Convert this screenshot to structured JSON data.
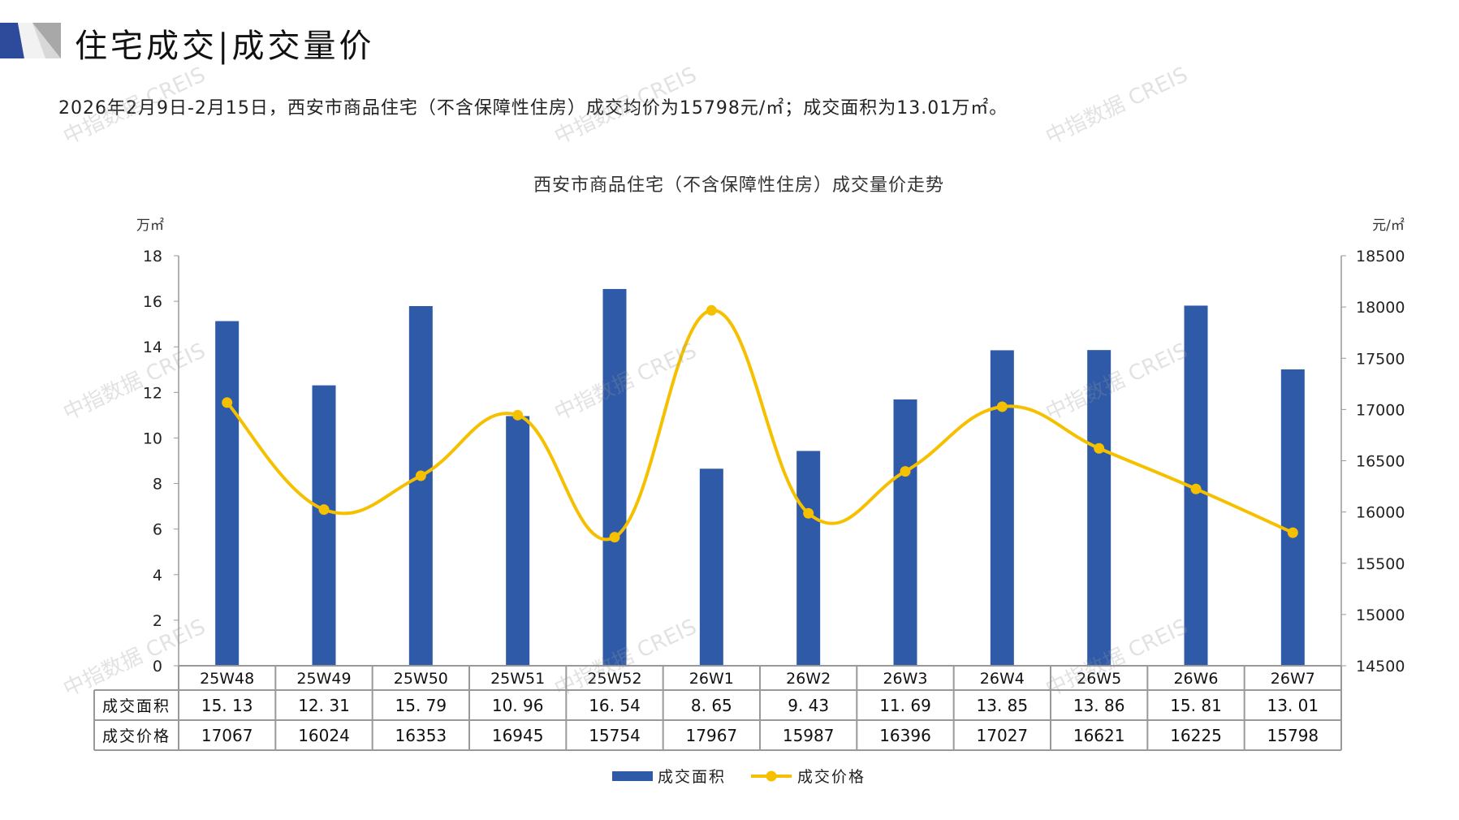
{
  "header": {
    "title": "住宅成交|成交量价",
    "subtitle": "2026年2月9日-2月15日，西安市商品住宅（不含保障性住房）成交均价为15798元/㎡；成交面积为13.01万㎡。"
  },
  "watermark": "中指数据 CREIS",
  "colors": {
    "bar": "#2E5AA8",
    "line": "#F5C000",
    "grid": "#999999"
  },
  "chart_data": {
    "type": "bar",
    "title": "西安市商品住宅（不含保障性住房）成交量价走势",
    "categories": [
      "25W48",
      "25W49",
      "25W50",
      "25W51",
      "25W52",
      "26W1",
      "26W2",
      "26W3",
      "26W4",
      "26W5",
      "26W6",
      "26W7"
    ],
    "series": [
      {
        "name": "成交面积",
        "type": "bar",
        "axis": "left",
        "values": [
          15.13,
          12.31,
          15.79,
          10.96,
          16.54,
          8.65,
          9.43,
          11.69,
          13.85,
          13.86,
          15.81,
          13.01
        ]
      },
      {
        "name": "成交价格",
        "type": "line",
        "axis": "right",
        "values": [
          17067,
          16024,
          16353,
          16945,
          15754,
          17967,
          15987,
          16396,
          17027,
          16621,
          16225,
          15798
        ]
      }
    ],
    "table_labels": [
      "成交面积",
      "成交价格"
    ],
    "table_values": [
      [
        "15. 13",
        "12. 31",
        "15. 79",
        "10. 96",
        "16. 54",
        "8. 65",
        "9. 43",
        "11. 69",
        "13. 85",
        "13. 86",
        "15. 81",
        "13. 01"
      ],
      [
        "17067",
        "16024",
        "16353",
        "16945",
        "15754",
        "17967",
        "15987",
        "16396",
        "17027",
        "16621",
        "16225",
        "15798"
      ]
    ],
    "ylabel_left": "万㎡",
    "ylabel_right": "元/㎡",
    "ylim_left": [
      0,
      18
    ],
    "yticks_left": [
      0,
      2,
      4,
      6,
      8,
      10,
      12,
      14,
      16,
      18
    ],
    "ylim_right": [
      14500,
      18500
    ],
    "yticks_right": [
      14500,
      15000,
      15500,
      16000,
      16500,
      17000,
      17500,
      18000,
      18500
    ],
    "legend_position": "bottom"
  }
}
